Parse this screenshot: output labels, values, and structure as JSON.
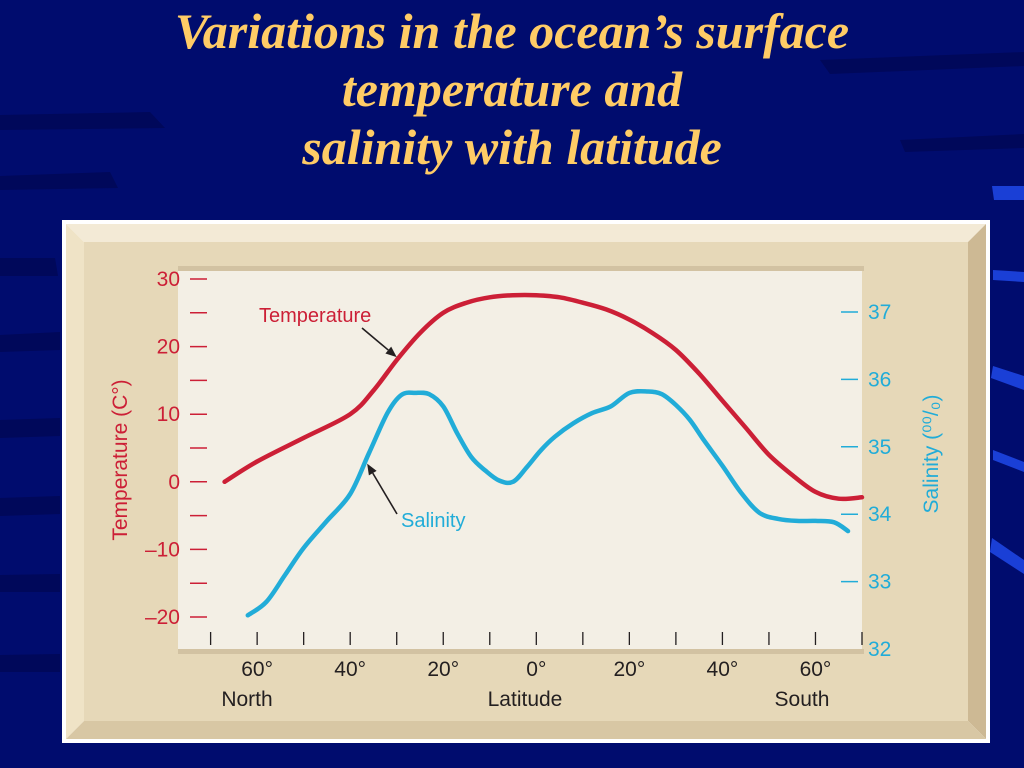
{
  "slide": {
    "title_lines": [
      "Variations in the ocean’s surface",
      "temperature and",
      "salinity with latitude"
    ]
  },
  "colors": {
    "background": "#000c6e",
    "title": "#ffcc66",
    "frame": "#e3d4b4",
    "plot_background": "#f3efe5",
    "temperature": "#cc1f36",
    "salinity": "#21acd8",
    "axis_text": "#231f20"
  },
  "chart_data": {
    "type": "line",
    "x_axis": {
      "label": "Latitude",
      "tick_labels": [
        "60°",
        "40°",
        "20°",
        "0°",
        "20°",
        "40°",
        "60°"
      ],
      "tick_values": [
        -60,
        -40,
        -20,
        0,
        20,
        40,
        60
      ],
      "minor_tick_values": [
        -70,
        -60,
        -50,
        -40,
        -30,
        -20,
        -10,
        0,
        10,
        20,
        30,
        40,
        50,
        60,
        70
      ],
      "range": [
        -74,
        70
      ],
      "end_labels": {
        "left": "North",
        "right": "South"
      }
    },
    "y_axis_left": {
      "label": "Temperature (C°)",
      "tick_labels": [
        "30",
        "20",
        "10",
        "0",
        "–10",
        "–20"
      ],
      "tick_values": [
        30,
        20,
        10,
        0,
        -10,
        -20
      ],
      "minor_tick_values": [
        25,
        15,
        5,
        -5,
        -15
      ],
      "range": [
        -25,
        30
      ]
    },
    "y_axis_right": {
      "label": "Salinity (⁰⁰/₀)",
      "tick_labels": [
        "37",
        "36",
        "35",
        "34",
        "33",
        "32"
      ],
      "tick_values": [
        37,
        36,
        35,
        34,
        33,
        32
      ],
      "range": [
        32,
        37.5
      ]
    },
    "series": [
      {
        "name": "Temperature",
        "axis": "left",
        "color": "#cc1f36",
        "x": [
          -67,
          -60,
          -50,
          -40,
          -35,
          -30,
          -25,
          -20,
          -15,
          -10,
          -5,
          0,
          5,
          10,
          15,
          20,
          25,
          30,
          35,
          40,
          45,
          50,
          55,
          60,
          65,
          70
        ],
        "y": [
          0,
          3,
          6.5,
          10,
          13.5,
          18,
          22,
          25,
          26.5,
          27.3,
          27.6,
          27.6,
          27.3,
          26.5,
          25.5,
          24,
          22,
          19.5,
          16,
          12,
          8,
          4,
          1,
          -1.5,
          -2.5,
          -2.3
        ]
      },
      {
        "name": "Salinity",
        "axis": "right",
        "color": "#21acd8",
        "x": [
          -62,
          -58,
          -54,
          -50,
          -45,
          -40,
          -36,
          -32,
          -29,
          -26,
          -23,
          -20,
          -17,
          -14,
          -11,
          -8,
          -5,
          -2,
          1,
          4,
          8,
          12,
          16,
          20,
          24,
          27,
          30,
          33,
          36,
          40,
          44,
          48,
          52,
          56,
          60,
          64,
          67
        ],
        "y": [
          32.5,
          32.7,
          33.1,
          33.5,
          33.9,
          34.3,
          34.9,
          35.5,
          35.77,
          35.8,
          35.78,
          35.6,
          35.2,
          34.85,
          34.65,
          34.5,
          34.48,
          34.7,
          34.95,
          35.15,
          35.35,
          35.5,
          35.6,
          35.8,
          35.82,
          35.78,
          35.62,
          35.4,
          35.1,
          34.72,
          34.32,
          34.02,
          33.93,
          33.9,
          33.9,
          33.88,
          33.75
        ]
      }
    ],
    "annotations": [
      {
        "text": "Temperature",
        "series": "Temperature",
        "arrow_to": [
          -30,
          18
        ]
      },
      {
        "text": "Salinity",
        "series": "Salinity",
        "arrow_to": [
          -37,
          34.75
        ]
      }
    ]
  }
}
